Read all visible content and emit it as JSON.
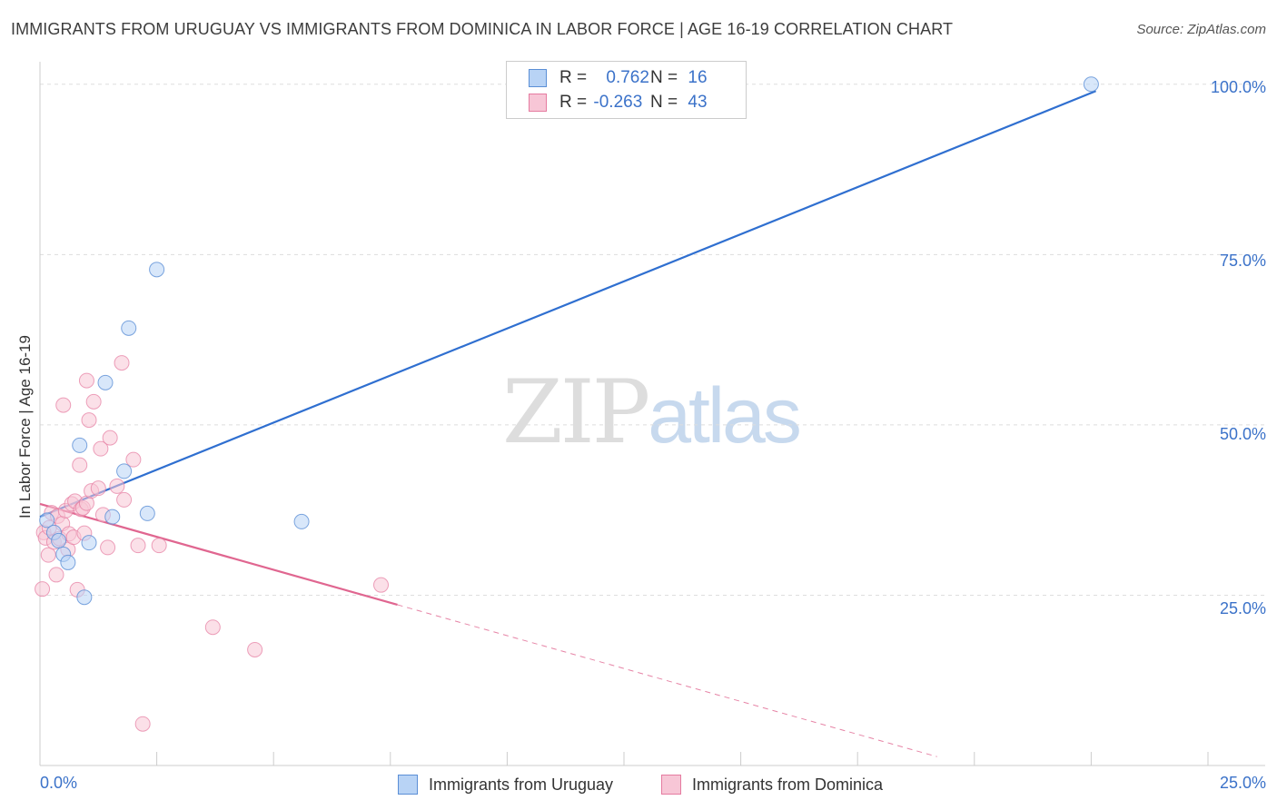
{
  "title": "IMMIGRANTS FROM URUGUAY VS IMMIGRANTS FROM DOMINICA IN LABOR FORCE | AGE 16-19 CORRELATION CHART",
  "source": "Source: ZipAtlas.com",
  "watermark": {
    "zip": "ZIP",
    "atlas": "atlas"
  },
  "legend_top": [
    {
      "r_label": "R =",
      "r_value": "0.762",
      "n_label": "N =",
      "n_value": "16"
    },
    {
      "r_label": "R =",
      "r_value": "-0.263",
      "n_label": "N =",
      "n_value": "43"
    }
  ],
  "colors": {
    "uruguay_fill": "#b8d3f5",
    "uruguay_stroke": "#5b8fd6",
    "uruguay_line": "#2f6fd0",
    "dominica_fill": "#f7c6d6",
    "dominica_stroke": "#e57ba0",
    "dominica_line": "#e06690",
    "axis_text": "#3b72c9",
    "grid": "#dddddd"
  },
  "chart_data": {
    "type": "scatter",
    "title": "IMMIGRANTS FROM URUGUAY VS IMMIGRANTS FROM DOMINICA IN LABOR FORCE | AGE 16-19 CORRELATION CHART",
    "xlabel": "",
    "ylabel": "In Labor Force | Age 16-19",
    "xlim": [
      0,
      25
    ],
    "ylim": [
      0,
      102.5
    ],
    "x_tick_labels": [
      "0.0%",
      "25.0%"
    ],
    "y_ticks": [
      25,
      50,
      75,
      100
    ],
    "y_tick_labels": [
      "25.0%",
      "50.0%",
      "75.0%",
      "100.0%"
    ],
    "grid": true,
    "legend": "bottom",
    "series": [
      {
        "name": "Immigrants from Uruguay",
        "r": 0.762,
        "n": 16,
        "points": [
          [
            0.15,
            36.0
          ],
          [
            0.3,
            34.2
          ],
          [
            0.4,
            33.0
          ],
          [
            0.5,
            31.0
          ],
          [
            0.6,
            29.8
          ],
          [
            0.85,
            47.0
          ],
          [
            0.95,
            24.7
          ],
          [
            1.05,
            32.7
          ],
          [
            1.4,
            56.2
          ],
          [
            1.55,
            36.5
          ],
          [
            1.8,
            43.2
          ],
          [
            1.9,
            64.2
          ],
          [
            2.3,
            37.0
          ],
          [
            2.5,
            72.8
          ],
          [
            5.6,
            35.8
          ],
          [
            22.5,
            100.0
          ]
        ],
        "trend": {
          "x": [
            0.0,
            22.6
          ],
          "y": [
            36.5,
            99.0
          ],
          "style": "solid"
        }
      },
      {
        "name": "Immigrants from Dominica",
        "r": -0.263,
        "n": 43,
        "points": [
          [
            0.05,
            25.9
          ],
          [
            0.08,
            34.2
          ],
          [
            0.12,
            33.4
          ],
          [
            0.18,
            30.9
          ],
          [
            0.2,
            34.9
          ],
          [
            0.25,
            37.1
          ],
          [
            0.3,
            32.8
          ],
          [
            0.35,
            28.0
          ],
          [
            0.38,
            36.6
          ],
          [
            0.42,
            33.3
          ],
          [
            0.48,
            35.5
          ],
          [
            0.5,
            52.9
          ],
          [
            0.55,
            37.4
          ],
          [
            0.6,
            31.7
          ],
          [
            0.62,
            34.0
          ],
          [
            0.68,
            38.4
          ],
          [
            0.72,
            33.5
          ],
          [
            0.75,
            38.8
          ],
          [
            0.8,
            25.8
          ],
          [
            0.85,
            44.1
          ],
          [
            0.88,
            37.6
          ],
          [
            0.92,
            37.8
          ],
          [
            0.95,
            34.1
          ],
          [
            1.0,
            38.5
          ],
          [
            1.05,
            50.7
          ],
          [
            1.0,
            56.5
          ],
          [
            1.1,
            40.3
          ],
          [
            1.15,
            53.4
          ],
          [
            1.25,
            40.7
          ],
          [
            1.3,
            46.5
          ],
          [
            1.35,
            36.8
          ],
          [
            1.45,
            32.0
          ],
          [
            1.5,
            48.1
          ],
          [
            1.65,
            41.0
          ],
          [
            1.75,
            59.1
          ],
          [
            1.8,
            39.0
          ],
          [
            2.0,
            44.9
          ],
          [
            2.1,
            32.3
          ],
          [
            2.2,
            6.1
          ],
          [
            2.55,
            32.3
          ],
          [
            3.7,
            20.3
          ],
          [
            4.6,
            17.0
          ],
          [
            7.3,
            26.5
          ]
        ],
        "trend": {
          "x": [
            0.0,
            7.65
          ],
          "y": [
            38.4,
            23.6
          ],
          "style": "solid"
        },
        "trend_extension": {
          "x": [
            7.65,
            19.2
          ],
          "y": [
            23.6,
            1.3
          ],
          "style": "dashed"
        }
      }
    ]
  }
}
